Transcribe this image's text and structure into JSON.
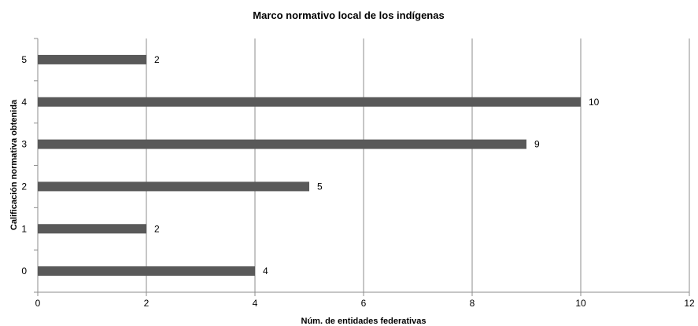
{
  "chart_data": {
    "type": "bar",
    "orientation": "horizontal",
    "title": "Marco normativo local de los indígenas",
    "xlabel": "Núm. de entidades federativas",
    "ylabel": "Calificación normativa obtenida",
    "categories": [
      "0",
      "1",
      "2",
      "3",
      "4",
      "5"
    ],
    "values": [
      4,
      2,
      5,
      9,
      10,
      2
    ],
    "xlim": [
      0,
      12
    ],
    "xticks": [
      0,
      2,
      4,
      6,
      8,
      10,
      12
    ],
    "grid": true,
    "legend": "none",
    "bar_color": "#595959"
  }
}
